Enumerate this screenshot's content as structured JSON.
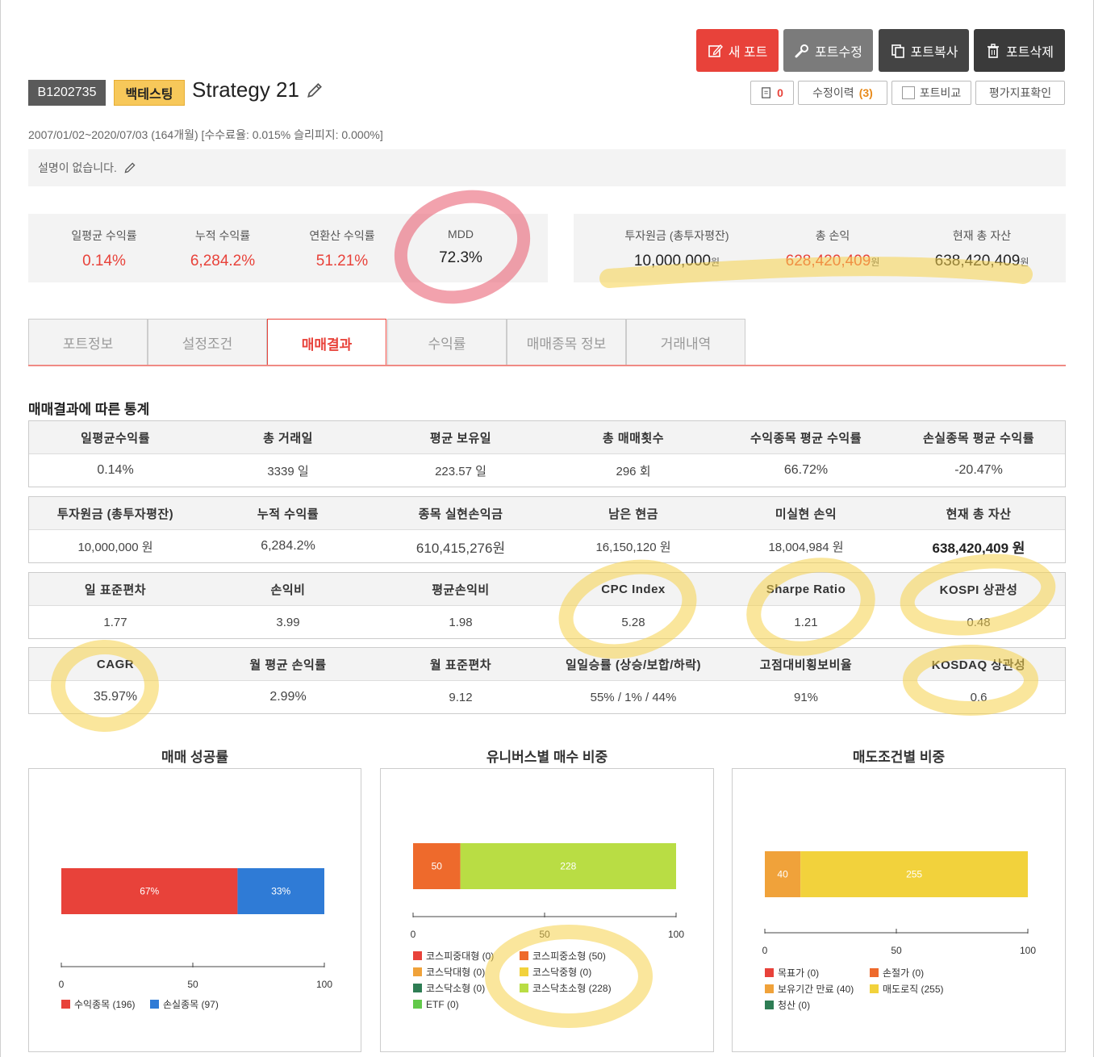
{
  "actions": {
    "new_port": "새 포트",
    "edit_port": "포트수정",
    "copy_port": "포트복사",
    "delete_port": "포트삭제"
  },
  "tools": {
    "count": "0",
    "history_label": "수정이력",
    "history_count": "(3)",
    "compare": "포트비교",
    "metrics": "평가지표확인"
  },
  "header": {
    "id": "B1202735",
    "badge": "백테스팅",
    "title": "Strategy 21",
    "period": "2007/01/02~2020/07/03 (164개월) [수수료율: 0.015% 슬리피지: 0.000%]",
    "description": "설명이 없습니다."
  },
  "summary_left": [
    {
      "label": "일평균 수익률",
      "value": "0.14%"
    },
    {
      "label": "누적 수익률",
      "value": "6,284.2%"
    },
    {
      "label": "연환산 수익률",
      "value": "51.21%"
    },
    {
      "label": "MDD",
      "value": "72.3%"
    }
  ],
  "summary_right": [
    {
      "label": "투자원금 (총투자평잔)",
      "value": "10,000,000",
      "unit": "원"
    },
    {
      "label": "총 손익",
      "value": "628,420,409",
      "unit": "원"
    },
    {
      "label": "현재 총 자산",
      "value": "638,420,409",
      "unit": "원"
    }
  ],
  "tabs": [
    "포트정보",
    "설정조건",
    "매매결과",
    "수익률",
    "매매종목 정보",
    "거래내역"
  ],
  "active_tab": "매매결과",
  "stats_title": "매매결과에 따른 통계",
  "stats": [
    {
      "headers": [
        "일평균수익률",
        "총 거래일",
        "평균 보유일",
        "총 매매횟수",
        "수익종목 평균 수익률",
        "손실종목 평균 수익률"
      ],
      "values": [
        "0.14%",
        "3339 일",
        "223.57 일",
        "296 회",
        "66.72%",
        "-20.47%"
      ]
    },
    {
      "headers": [
        "투자원금 (총투자평잔)",
        "누적 수익률",
        "종목 실현손익금",
        "남은 현금",
        "미실현 손익",
        "현재 총 자산"
      ],
      "values": [
        "10,000,000 원",
        "6,284.2%",
        "610,415,276원",
        "16,150,120 원",
        "18,004,984 원",
        "638,420,409 원"
      ]
    },
    {
      "headers": [
        "일 표준편차",
        "손익비",
        "평균손익비",
        "CPC Index",
        "Sharpe Ratio",
        "KOSPI 상관성"
      ],
      "values": [
        "1.77",
        "3.99",
        "1.98",
        "5.28",
        "1.21",
        "0.48"
      ]
    },
    {
      "headers": [
        "CAGR",
        "월 평균 손익률",
        "월 표준편차",
        "일일승률 (상승/보합/하락)",
        "고점대비횡보비율",
        "KOSDAQ 상관성"
      ],
      "values": [
        "35.97%",
        "2.99%",
        "9.12",
        "55% / 1% / 44%",
        "91%",
        "0.6"
      ]
    }
  ],
  "colors": {
    "accent_red": "#e8423a",
    "blue": "#2f7bd6",
    "orange": "#ee6a2c",
    "lime": "#b9dd44",
    "amber": "#f0a23a",
    "yellow": "#f2d23c",
    "green": "#2e7d54",
    "bright_green": "#62c94a"
  },
  "chart_data": [
    {
      "type": "bar",
      "title": "매매 성공률",
      "orientation": "horizontal-stacked",
      "x_ticks": [
        "0",
        "50",
        "100"
      ],
      "xlim": [
        0,
        100
      ],
      "series": [
        {
          "name": "수익종목",
          "value": 67,
          "label": "67%",
          "legend": "수익종목 (196)",
          "color": "#e8423a"
        },
        {
          "name": "손실종목",
          "value": 33,
          "label": "33%",
          "legend": "손실종목 (97)",
          "color": "#2f7bd6"
        }
      ]
    },
    {
      "type": "bar",
      "title": "유니버스별 매수 비중",
      "orientation": "horizontal-stacked",
      "x_ticks": [
        "0",
        "50",
        "100"
      ],
      "xlim": [
        0,
        100
      ],
      "total": 278,
      "series": [
        {
          "name": "코스피중대형",
          "value": 0,
          "legend": "코스피중대형 (0)",
          "color": "#e8423a"
        },
        {
          "name": "코스피중소형",
          "value": 50,
          "legend": "코스피중소형 (50)",
          "color": "#ee6a2c"
        },
        {
          "name": "코스닥대형",
          "value": 0,
          "legend": "코스닥대형 (0)",
          "color": "#f0a23a"
        },
        {
          "name": "코스닥중형",
          "value": 0,
          "legend": "코스닥중형 (0)",
          "color": "#f2d23c"
        },
        {
          "name": "코스닥소형",
          "value": 0,
          "legend": "코스닥소형 (0)",
          "color": "#2e7d54"
        },
        {
          "name": "코스닥초소형",
          "value": 228,
          "legend": "코스닥초소형 (228)",
          "color": "#b9dd44"
        },
        {
          "name": "ETF",
          "value": 0,
          "legend": "ETF (0)",
          "color": "#62c94a"
        }
      ]
    },
    {
      "type": "bar",
      "title": "매도조건별 비중",
      "orientation": "horizontal-stacked",
      "x_ticks": [
        "0",
        "50",
        "100"
      ],
      "xlim": [
        0,
        100
      ],
      "total": 295,
      "series": [
        {
          "name": "목표가",
          "value": 0,
          "legend": "목표가 (0)",
          "color": "#e8423a"
        },
        {
          "name": "손절가",
          "value": 0,
          "legend": "손절가 (0)",
          "color": "#ee6a2c"
        },
        {
          "name": "보유기간 만료",
          "value": 40,
          "legend": "보유기간 만료 (40)",
          "color": "#f0a23a"
        },
        {
          "name": "매도로직",
          "value": 255,
          "legend": "매도로직 (255)",
          "color": "#f2d23c"
        },
        {
          "name": "청산",
          "value": 0,
          "legend": "청산 (0)",
          "color": "#2e7d54"
        }
      ]
    }
  ]
}
